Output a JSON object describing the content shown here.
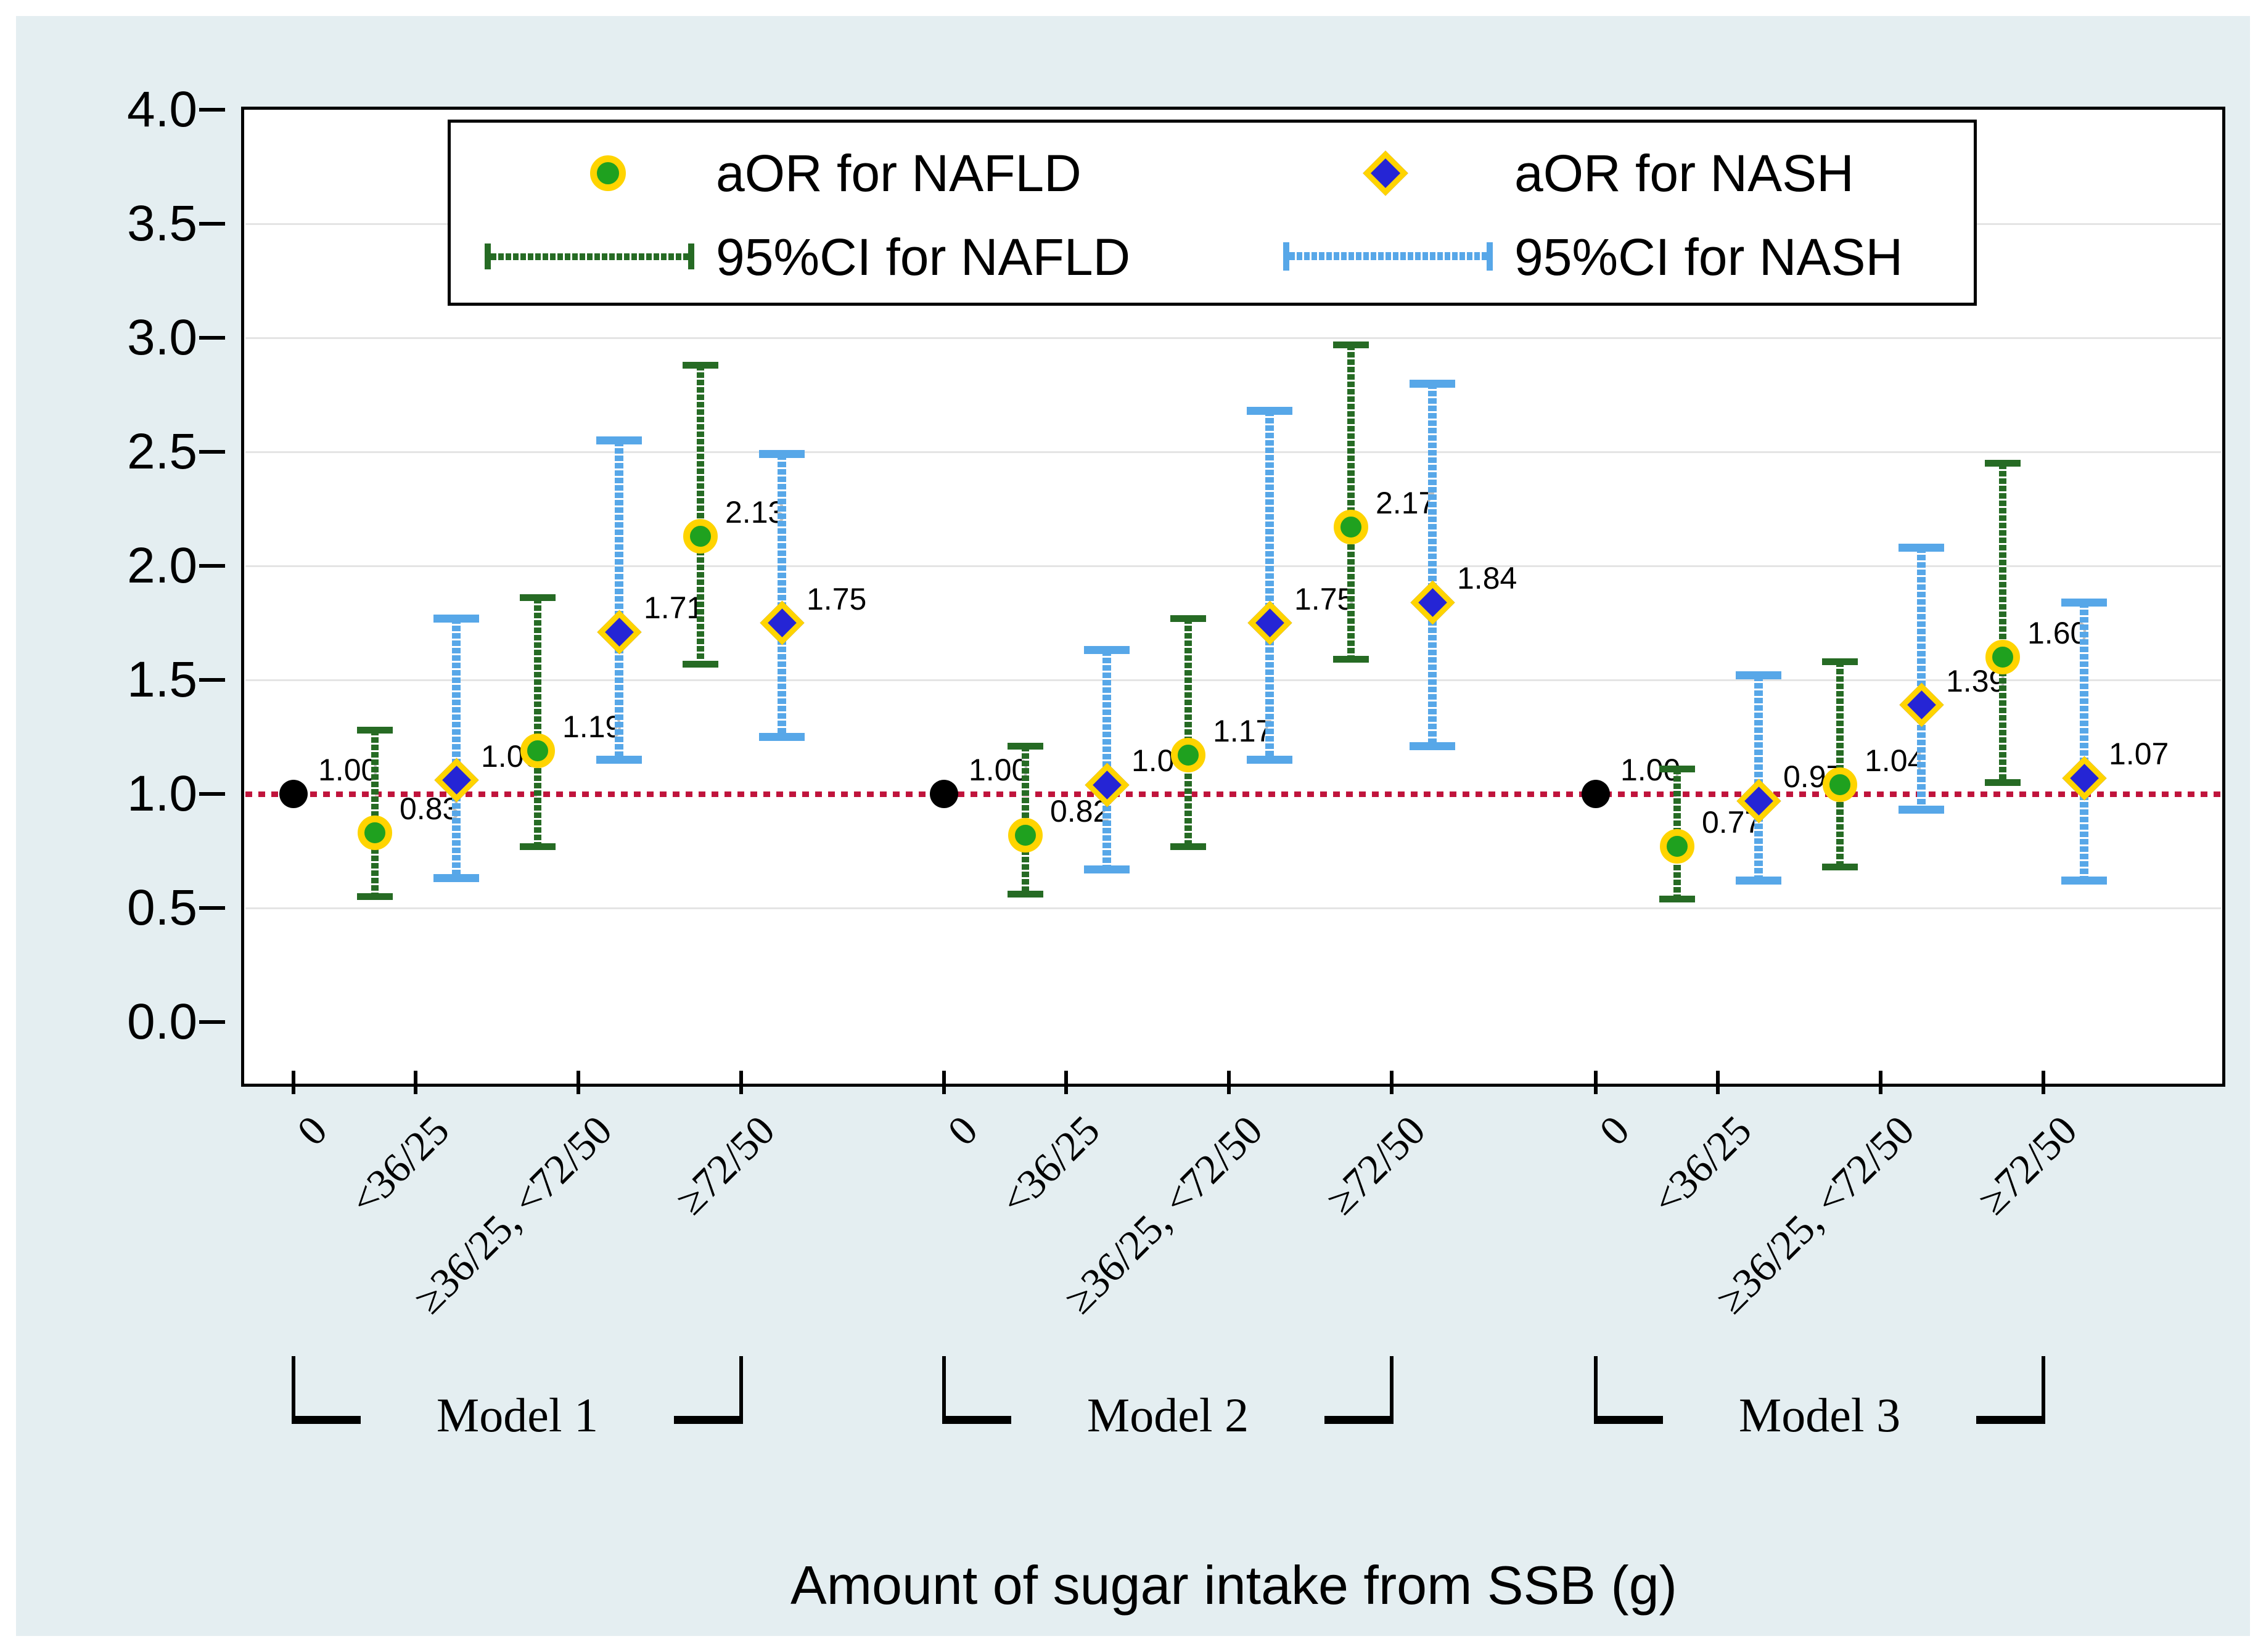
{
  "figure": {
    "xlabel": "Amount of sugar intake from SSB (g)"
  },
  "legend": {
    "items": [
      {
        "label": "aOR for NAFLD",
        "symbol": "green-circle-gold-ring"
      },
      {
        "label": "aOR for NASH",
        "symbol": "blue-diamond-gold-ring"
      },
      {
        "label": "95%CI for NAFLD",
        "symbol": "green-error-bar"
      },
      {
        "label": "95%CI for NASH",
        "symbol": "light-blue-error-bar"
      }
    ]
  },
  "colors": {
    "graph_background": "#e4eef1",
    "plot_background": "#ffffff",
    "nafld_marker": "#1fa11f",
    "nash_marker": "#2525d5",
    "marker_ring": "#ffd400",
    "nafld_ci": "#266b24",
    "nash_ci": "#57a7e8",
    "reference_line": "#c0143c",
    "reference_marker": "#000000"
  },
  "chart_data": {
    "type": "scatter",
    "subtype": "forest-plot-grouped-error-bars",
    "title": "",
    "xlabel": "Amount of sugar intake from SSB (g)",
    "ylabel": "",
    "ylim": [
      0.0,
      4.0
    ],
    "yticks": [
      "0.0",
      "0.5",
      "1.0",
      "1.5",
      "2.0",
      "2.5",
      "3.0",
      "3.5",
      "4.0"
    ],
    "grid": true,
    "legend_position": "top-center",
    "reference_line_y": 1.0,
    "categories": [
      "0",
      "<36/25",
      "≥36/25, <72/50",
      "≥72/50"
    ],
    "series_names": [
      "aOR for NAFLD",
      "aOR for NASH"
    ],
    "groups": [
      {
        "label": "Model 1",
        "points": [
          {
            "series": "reference",
            "category": "0",
            "value": 1.0,
            "label": "1.00"
          },
          {
            "series": "NAFLD",
            "category": "<36/25",
            "value": 0.83,
            "ci": [
              0.55,
              1.28
            ],
            "label": "0.83"
          },
          {
            "series": "NASH",
            "category": "<36/25",
            "value": 1.06,
            "ci": [
              0.63,
              1.77
            ],
            "label": "1.06"
          },
          {
            "series": "NAFLD",
            "category": "≥36/25, <72/50",
            "value": 1.19,
            "ci": [
              0.77,
              1.86
            ],
            "label": "1.19"
          },
          {
            "series": "NASH",
            "category": "≥36/25, <72/50",
            "value": 1.71,
            "ci": [
              1.15,
              2.55
            ],
            "label": "1.71"
          },
          {
            "series": "NAFLD",
            "category": "≥72/50",
            "value": 2.13,
            "ci": [
              1.57,
              2.88
            ],
            "label": "2.13"
          },
          {
            "series": "NASH",
            "category": "≥72/50",
            "value": 1.75,
            "ci": [
              1.25,
              2.49
            ],
            "label": "1.75"
          }
        ]
      },
      {
        "label": "Model 2",
        "points": [
          {
            "series": "reference",
            "category": "0",
            "value": 1.0,
            "label": "1.00"
          },
          {
            "series": "NAFLD",
            "category": "<36/25",
            "value": 0.82,
            "ci": [
              0.56,
              1.21
            ],
            "label": "0.82"
          },
          {
            "series": "NASH",
            "category": "<36/25",
            "value": 1.04,
            "ci": [
              0.67,
              1.63
            ],
            "label": "1.04"
          },
          {
            "series": "NAFLD",
            "category": "≥36/25, <72/50",
            "value": 1.17,
            "ci": [
              0.77,
              1.77
            ],
            "label": "1.17"
          },
          {
            "series": "NASH",
            "category": "≥36/25, <72/50",
            "value": 1.75,
            "ci": [
              1.15,
              2.68
            ],
            "label": "1.75"
          },
          {
            "series": "NAFLD",
            "category": "≥72/50",
            "value": 2.17,
            "ci": [
              1.59,
              2.97
            ],
            "label": "2.17"
          },
          {
            "series": "NASH",
            "category": "≥72/50",
            "value": 1.84,
            "ci": [
              1.21,
              2.8
            ],
            "label": "1.84"
          }
        ]
      },
      {
        "label": "Model 3",
        "points": [
          {
            "series": "reference",
            "category": "0",
            "value": 1.0,
            "label": "1.00"
          },
          {
            "series": "NAFLD",
            "category": "<36/25",
            "value": 0.77,
            "ci": [
              0.54,
              1.11
            ],
            "label": "0.77"
          },
          {
            "series": "NASH",
            "category": "<36/25",
            "value": 0.97,
            "ci": [
              0.62,
              1.52
            ],
            "label": "0.97"
          },
          {
            "series": "NAFLD",
            "category": "≥36/25, <72/50",
            "value": 1.04,
            "ci": [
              0.68,
              1.58
            ],
            "label": "1.04"
          },
          {
            "series": "NASH",
            "category": "≥36/25, <72/50",
            "value": 1.39,
            "ci": [
              0.93,
              2.08
            ],
            "label": "1.39"
          },
          {
            "series": "NAFLD",
            "category": "≥72/50",
            "value": 1.6,
            "ci": [
              1.05,
              2.45
            ],
            "label": "1.60"
          },
          {
            "series": "NASH",
            "category": "≥72/50",
            "value": 1.07,
            "ci": [
              0.62,
              1.84
            ],
            "label": "1.07"
          }
        ]
      }
    ]
  }
}
